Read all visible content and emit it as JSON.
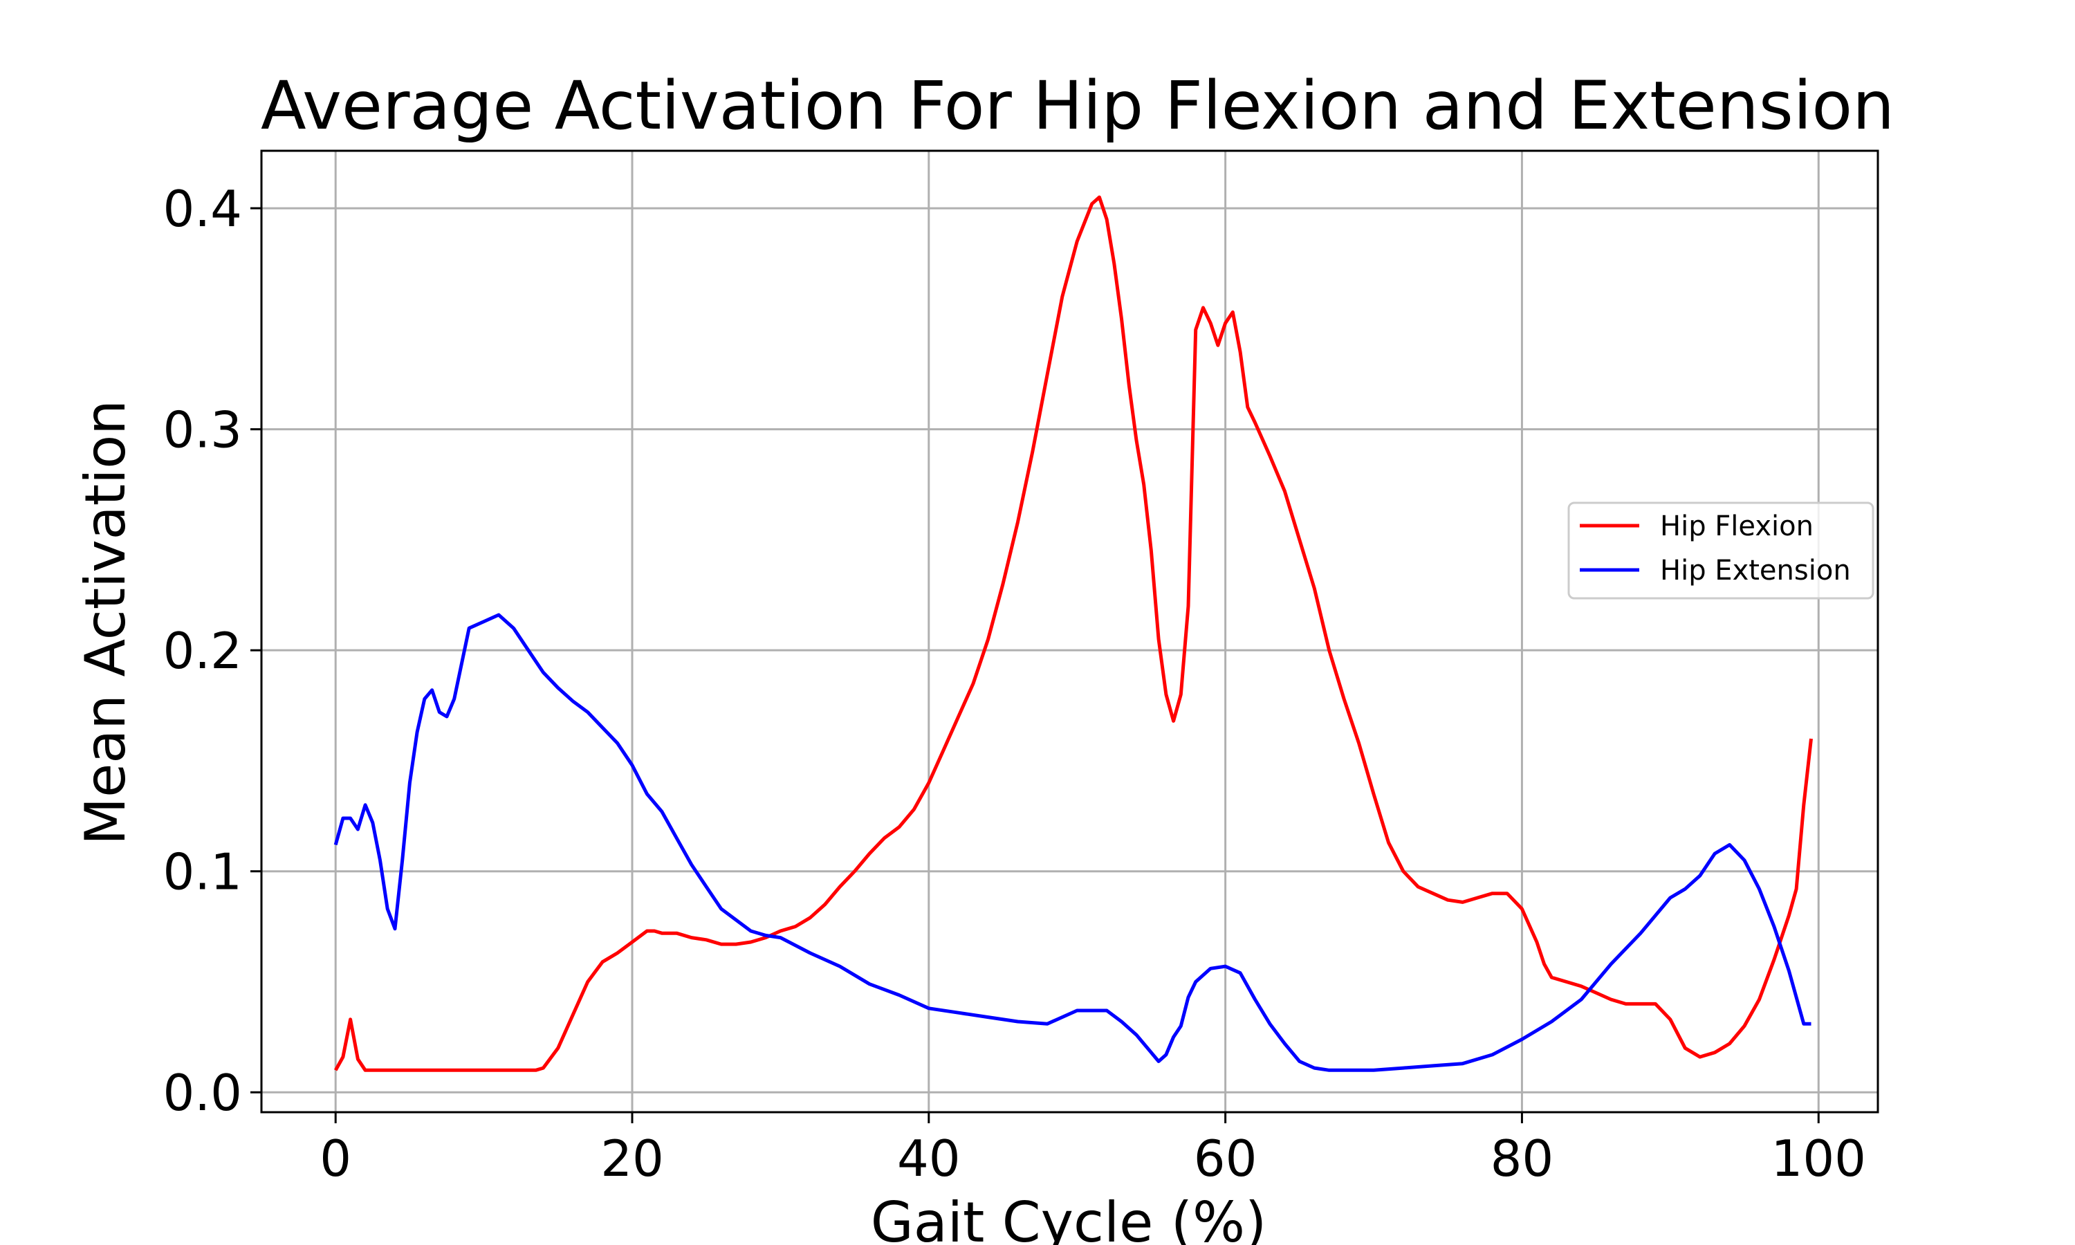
{
  "chart_data": {
    "type": "line",
    "title": "Average Activation For Hip Flexion and Extension",
    "xlabel": "Gait Cycle (%)",
    "ylabel": "Mean Activation",
    "xlim": [
      -5,
      104
    ],
    "ylim": [
      -0.009,
      0.426
    ],
    "xticks": [
      0,
      20,
      40,
      60,
      80,
      100
    ],
    "yticks": [
      0.0,
      0.1,
      0.2,
      0.3,
      0.4
    ],
    "xtick_labels": [
      "0",
      "20",
      "40",
      "60",
      "80",
      "100"
    ],
    "ytick_labels": [
      "0.0",
      "0.1",
      "0.2",
      "0.3",
      "0.4"
    ],
    "grid": true,
    "legend_position": "center-right",
    "series": [
      {
        "name": "Hip Flexion",
        "color": "#ff0000",
        "x": [
          0,
          0.5,
          1,
          1.5,
          2,
          3,
          5,
          8,
          10,
          12,
          13.5,
          14,
          15,
          16,
          17,
          18,
          19,
          20,
          21,
          21.5,
          22,
          23,
          24,
          25,
          26,
          27,
          28,
          29,
          30,
          31,
          32,
          33,
          34,
          35,
          36,
          37,
          38,
          39,
          40,
          41,
          42,
          43,
          44,
          45,
          46,
          47,
          48,
          49,
          50,
          51,
          51.5,
          52,
          52.5,
          53,
          53.5,
          54,
          54.5,
          55,
          55.5,
          56,
          56.5,
          57,
          57.5,
          58,
          58.5,
          59,
          59.5,
          60,
          60.5,
          61,
          61.5,
          62,
          63,
          64,
          65,
          66,
          67,
          68,
          69,
          70,
          71,
          72,
          73,
          74,
          75,
          76,
          77,
          78,
          79,
          80,
          81,
          81.5,
          82,
          83,
          84,
          85,
          86,
          87,
          88,
          89,
          90,
          91,
          92,
          93,
          94,
          95,
          96,
          97,
          98,
          98.5,
          99,
          99.5
        ],
        "y": [
          0.01,
          0.016,
          0.033,
          0.015,
          0.01,
          0.01,
          0.01,
          0.01,
          0.01,
          0.01,
          0.01,
          0.011,
          0.02,
          0.035,
          0.05,
          0.059,
          0.063,
          0.068,
          0.073,
          0.073,
          0.072,
          0.072,
          0.07,
          0.069,
          0.067,
          0.067,
          0.068,
          0.07,
          0.073,
          0.075,
          0.079,
          0.085,
          0.093,
          0.1,
          0.108,
          0.115,
          0.12,
          0.128,
          0.14,
          0.155,
          0.17,
          0.185,
          0.205,
          0.23,
          0.258,
          0.29,
          0.325,
          0.36,
          0.385,
          0.402,
          0.405,
          0.395,
          0.375,
          0.35,
          0.32,
          0.295,
          0.275,
          0.245,
          0.205,
          0.18,
          0.168,
          0.18,
          0.22,
          0.345,
          0.355,
          0.348,
          0.338,
          0.348,
          0.353,
          0.335,
          0.31,
          0.303,
          0.288,
          0.272,
          0.25,
          0.228,
          0.2,
          0.178,
          0.158,
          0.135,
          0.113,
          0.1,
          0.093,
          0.09,
          0.087,
          0.086,
          0.088,
          0.09,
          0.09,
          0.083,
          0.068,
          0.058,
          0.052,
          0.05,
          0.048,
          0.045,
          0.042,
          0.04,
          0.04,
          0.04,
          0.033,
          0.02,
          0.016,
          0.018,
          0.022,
          0.03,
          0.042,
          0.06,
          0.08,
          0.092,
          0.13,
          0.16
        ]
      },
      {
        "name": "Hip Extension",
        "color": "#0000ff",
        "x": [
          0,
          0.5,
          1,
          1.5,
          2,
          2.5,
          3,
          3.5,
          4,
          4.5,
          5,
          5.5,
          6,
          6.5,
          7,
          7.5,
          8,
          9,
          10,
          11,
          12,
          13,
          14,
          15,
          16,
          17,
          18,
          19,
          20,
          21,
          22,
          23,
          24,
          25,
          26,
          27,
          28,
          29,
          30,
          32,
          34,
          36,
          38,
          40,
          42,
          44,
          46,
          48,
          50,
          52,
          53,
          54,
          55,
          55.5,
          56,
          56.5,
          57,
          57.5,
          58,
          59,
          60,
          61,
          62,
          63,
          64,
          65,
          66,
          67,
          68,
          70,
          72,
          74,
          76,
          78,
          80,
          82,
          84,
          86,
          88,
          90,
          91,
          92,
          93,
          94,
          95,
          96,
          97,
          98,
          99,
          99.5
        ],
        "y": [
          0.112,
          0.124,
          0.124,
          0.119,
          0.13,
          0.122,
          0.105,
          0.083,
          0.074,
          0.105,
          0.14,
          0.163,
          0.178,
          0.182,
          0.172,
          0.17,
          0.178,
          0.21,
          0.213,
          0.216,
          0.21,
          0.2,
          0.19,
          0.183,
          0.177,
          0.172,
          0.165,
          0.158,
          0.148,
          0.135,
          0.127,
          0.115,
          0.103,
          0.093,
          0.083,
          0.078,
          0.073,
          0.071,
          0.07,
          0.063,
          0.057,
          0.049,
          0.044,
          0.038,
          0.036,
          0.034,
          0.032,
          0.031,
          0.037,
          0.037,
          0.032,
          0.026,
          0.018,
          0.014,
          0.017,
          0.025,
          0.03,
          0.043,
          0.05,
          0.056,
          0.057,
          0.054,
          0.042,
          0.031,
          0.022,
          0.014,
          0.011,
          0.01,
          0.01,
          0.01,
          0.011,
          0.012,
          0.013,
          0.017,
          0.024,
          0.032,
          0.042,
          0.058,
          0.072,
          0.088,
          0.092,
          0.098,
          0.108,
          0.112,
          0.105,
          0.092,
          0.075,
          0.055,
          0.031,
          0.031
        ]
      }
    ]
  }
}
